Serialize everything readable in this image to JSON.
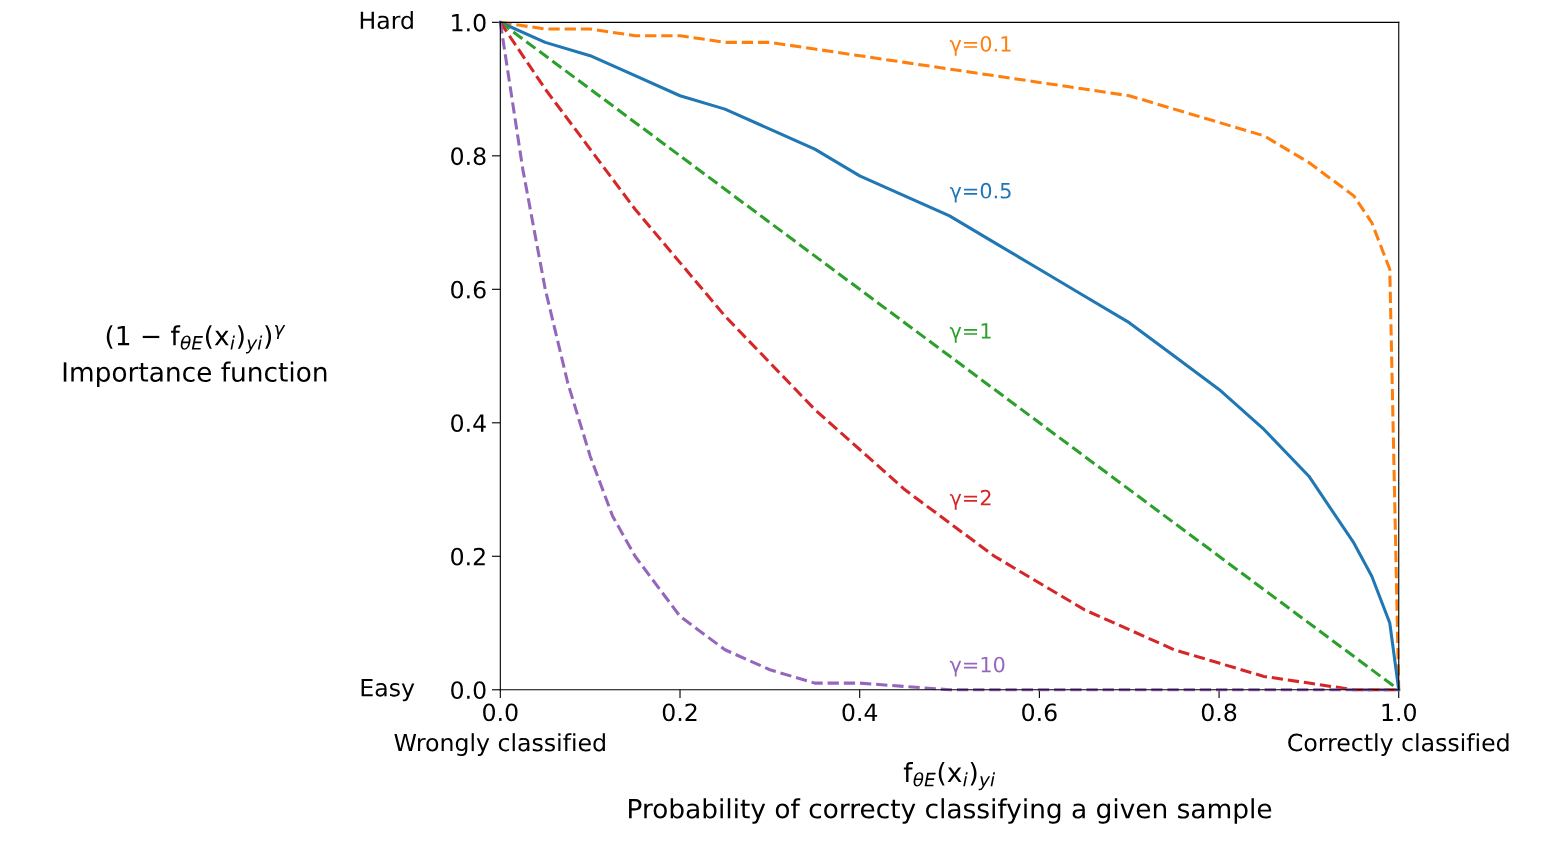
{
  "chart_data": {
    "type": "line",
    "xlabel": "f$_{θE}$(x$_{i}$)$_{yi}$\nProbability of correcty classifying a given sample",
    "ylabel": "(1 − f$_{θE}$(x$_{i}$)$_{yi}$)$^{γ}$\nImportance function",
    "xlim": [
      0,
      1
    ],
    "ylim": [
      0,
      1
    ],
    "xticks": [
      {
        "value": 0,
        "label": "0.0"
      },
      0.2,
      0.4,
      0.6,
      0.8,
      {
        "value": 1,
        "label": "1.0"
      }
    ],
    "yticks": [
      {
        "value": 0,
        "label": "0.0"
      },
      0.2,
      0.4,
      0.6,
      0.8,
      {
        "value": 1,
        "label": "1.0"
      }
    ],
    "grid": false,
    "legend": false,
    "series": [
      {
        "name": "γ=0.1",
        "color": "#ff7f0e",
        "line_style": "dashed",
        "x": [
          0,
          0.05,
          0.1,
          0.15,
          0.2,
          0.25,
          0.3,
          0.35,
          0.4,
          0.45,
          0.5,
          0.55,
          0.6,
          0.65,
          0.7,
          0.75,
          0.8,
          0.85,
          0.9,
          0.95,
          0.97,
          0.99,
          1
        ],
        "values": [
          1,
          0.99,
          0.99,
          0.98,
          0.98,
          0.97,
          0.97,
          0.96,
          0.95,
          0.94,
          0.93,
          0.92,
          0.91,
          0.9,
          0.89,
          0.87,
          0.85,
          0.83,
          0.79,
          0.74,
          0.7,
          0.63,
          0
        ]
      },
      {
        "name": "γ=0.5",
        "color": "#1f77b4",
        "line_style": "solid",
        "x": [
          0,
          0.05,
          0.1,
          0.15,
          0.2,
          0.25,
          0.3,
          0.35,
          0.4,
          0.45,
          0.5,
          0.55,
          0.6,
          0.65,
          0.7,
          0.75,
          0.8,
          0.85,
          0.9,
          0.95,
          0.97,
          0.99,
          1
        ],
        "values": [
          1,
          0.97,
          0.95,
          0.92,
          0.89,
          0.87,
          0.84,
          0.81,
          0.77,
          0.74,
          0.71,
          0.67,
          0.63,
          0.59,
          0.55,
          0.5,
          0.45,
          0.39,
          0.32,
          0.22,
          0.17,
          0.1,
          0
        ]
      },
      {
        "name": "γ=1",
        "color": "#2ca02c",
        "line_style": "dashed",
        "x": [
          0,
          0.5,
          1
        ],
        "values": [
          1,
          0.5,
          0
        ]
      },
      {
        "name": "γ=2",
        "color": "#d62728",
        "line_style": "dashed",
        "x": [
          0,
          0.05,
          0.1,
          0.15,
          0.2,
          0.25,
          0.3,
          0.35,
          0.4,
          0.45,
          0.5,
          0.55,
          0.6,
          0.65,
          0.7,
          0.75,
          0.8,
          0.85,
          0.9,
          0.95,
          1
        ],
        "values": [
          1,
          0.9,
          0.81,
          0.72,
          0.64,
          0.56,
          0.49,
          0.42,
          0.36,
          0.3,
          0.25,
          0.2,
          0.16,
          0.12,
          0.09,
          0.06,
          0.04,
          0.02,
          0.01,
          0,
          0
        ]
      },
      {
        "name": "γ=10",
        "color": "#9467bd",
        "line_style": "dashed",
        "x": [
          0,
          0.025,
          0.05,
          0.075,
          0.1,
          0.125,
          0.15,
          0.2,
          0.25,
          0.3,
          0.35,
          0.4,
          0.5,
          0.6,
          1
        ],
        "values": [
          1,
          0.78,
          0.6,
          0.46,
          0.35,
          0.26,
          0.2,
          0.11,
          0.06,
          0.03,
          0.01,
          0.01,
          0,
          0,
          0
        ]
      }
    ],
    "annotations": [
      "Hard",
      "Easy",
      "Wrongly classified",
      "Correctly classified"
    ]
  }
}
